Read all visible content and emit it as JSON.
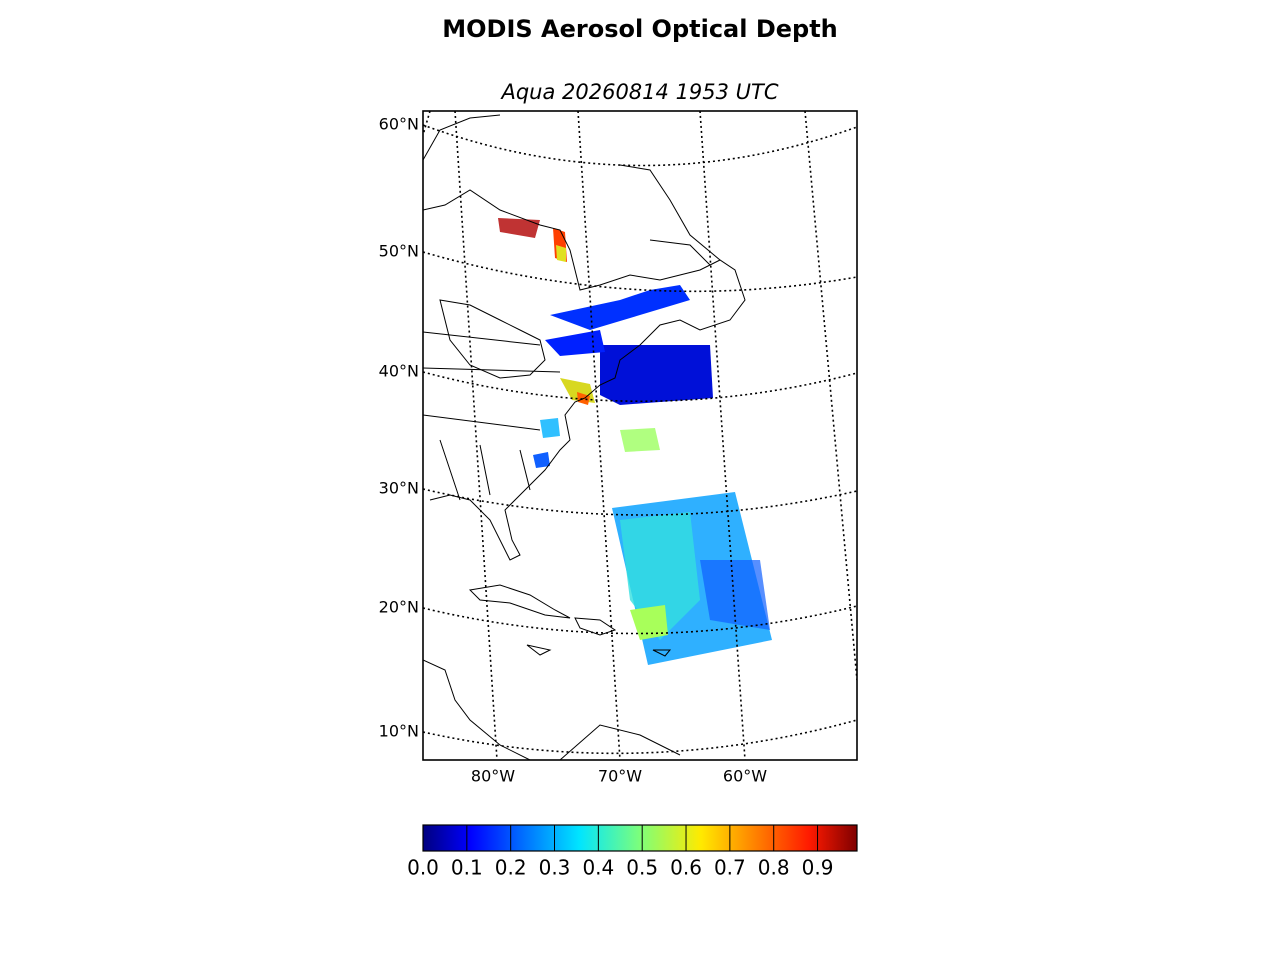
{
  "title": "MODIS Aerosol Optical Depth",
  "subtitle": "Aqua 20260814 1953 UTC",
  "map": {
    "lat_labels": [
      "60°N",
      "50°N",
      "40°N",
      "30°N",
      "20°N",
      "10°N"
    ],
    "lon_labels": [
      "80°W",
      "70°W",
      "60°W"
    ]
  },
  "colorbar": {
    "lim": [
      0,
      0.99
    ],
    "ticks": [
      {
        "value": 0,
        "label": "0.0"
      },
      0.1,
      0.2,
      0.3,
      0.4,
      0.5,
      0.6,
      0.7,
      0.8,
      0.9
    ]
  }
}
